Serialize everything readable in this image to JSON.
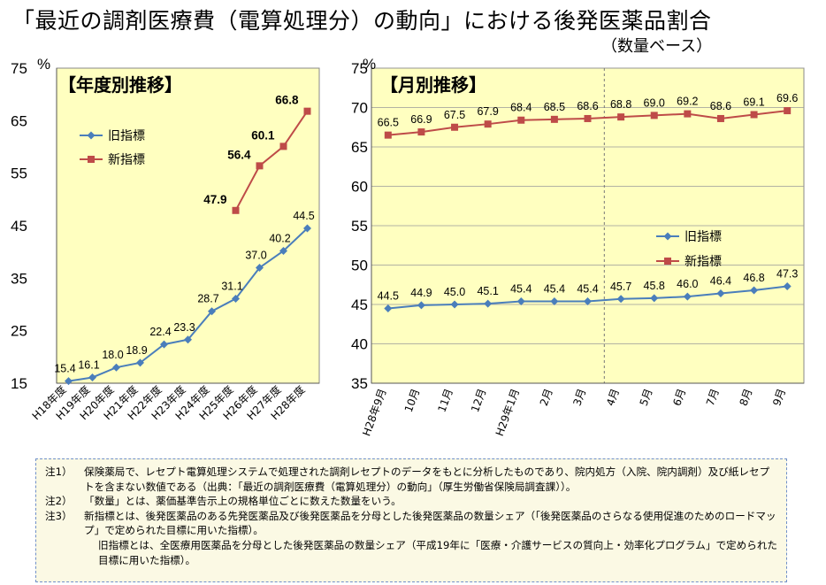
{
  "page": {
    "title": "「最近の調剤医療費（電算処理分）の動向」における後発医薬品割合",
    "subtitle": "（数量ベース）"
  },
  "colors": {
    "old": "#4a7ebb",
    "new": "#be4b48",
    "panel": "#ffffc0"
  },
  "chart_data": [
    {
      "type": "line",
      "title": "【年度別推移】",
      "ylabel": "%",
      "ylim": [
        15,
        75
      ],
      "yticks": [
        15,
        25,
        35,
        45,
        55,
        65,
        75
      ],
      "grid": false,
      "legend": "top-left",
      "categories": [
        "H18年度",
        "H19年度",
        "H20年度",
        "H21年度",
        "H22年度",
        "H23年度",
        "H24年度",
        "H25年度",
        "H26年度",
        "H27年度",
        "H28年度"
      ],
      "series": [
        {
          "name": "旧指標",
          "values": [
            15.4,
            16.1,
            18.0,
            18.9,
            22.4,
            23.3,
            28.7,
            31.1,
            37.0,
            40.2,
            44.5
          ]
        },
        {
          "name": "新指標",
          "values": [
            null,
            null,
            null,
            null,
            null,
            null,
            null,
            47.9,
            56.4,
            60.1,
            66.8
          ]
        }
      ],
      "label_labels": [
        "15.4",
        "16.1",
        "18.0",
        "18.9",
        "22.4",
        "23.3",
        "28.7",
        "31.1",
        "37.0",
        "40.2",
        "44.5"
      ]
    },
    {
      "type": "line",
      "title": "【月別推移】",
      "ylabel": "%",
      "ylim": [
        35,
        75
      ],
      "yticks": [
        35,
        40,
        45,
        50,
        55,
        60,
        65,
        70,
        75
      ],
      "grid": true,
      "legend": "center-right",
      "categories": [
        "H28年9月",
        "10月",
        "11月",
        "12月",
        "H29年1月",
        "2月",
        "3月",
        "4月",
        "5月",
        "6月",
        "7月",
        "8月",
        "9月"
      ],
      "series": [
        {
          "name": "旧指標",
          "values": [
            44.5,
            44.9,
            45.0,
            45.1,
            45.4,
            45.4,
            45.4,
            45.7,
            45.8,
            46.0,
            46.4,
            46.8,
            47.3
          ]
        },
        {
          "name": "新指標",
          "values": [
            66.5,
            66.9,
            67.5,
            67.9,
            68.4,
            68.5,
            68.6,
            68.8,
            69.0,
            69.2,
            68.6,
            69.1,
            69.6
          ]
        }
      ]
    }
  ],
  "notes": [
    {
      "no": "注1）",
      "text": "保険薬局で、レセプト電算処理システムで処理された調剤レセプトのデータをもとに分析したものであり、院内処方（入院、院内調剤）及び紙レセプトを含まない数値である（出典：「最近の調剤医療費（電算処理分）の動向」（厚生労働省保険局調査課））。"
    },
    {
      "no": "注2）",
      "text": "「数量」とは、薬価基準告示上の規格単位ごとに数えた数量をいう。"
    },
    {
      "no": "注3）",
      "text": "新指標とは、後発医薬品のある先発医薬品及び後発医薬品を分母とした後発医薬品の数量シェア（「後発医薬品のさらなる使用促進のためのロードマップ」で定められた目標に用いた指標）。"
    },
    {
      "no": "",
      "text": "旧指標とは、全医療用医薬品を分母とした後発医薬品の数量シェア（平成19年に「医療・介護サービスの質向上・効率化プログラム」で定められた目標に用いた指標）。"
    }
  ]
}
